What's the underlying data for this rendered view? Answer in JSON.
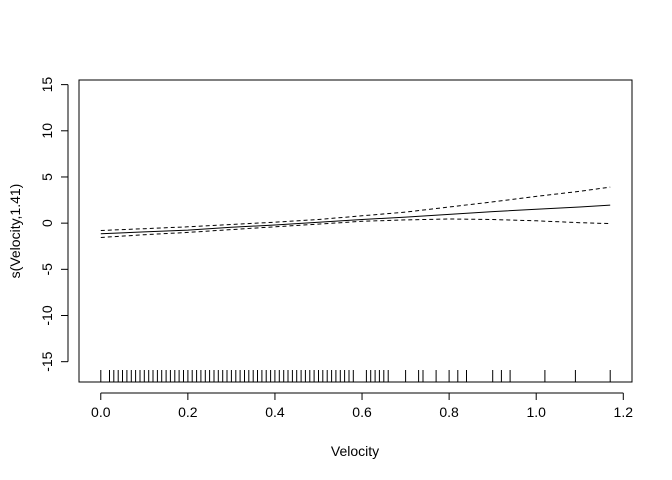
{
  "chart_data": {
    "type": "line",
    "title": "",
    "xlabel": "Velocity",
    "ylabel": "s(Velocity,1.41)",
    "xlim": [
      -0.05,
      1.22
    ],
    "ylim": [
      -17.2,
      15.5
    ],
    "x_ticks": [
      0.0,
      0.2,
      0.4,
      0.6,
      0.8,
      1.0,
      1.2
    ],
    "x_tick_labels": [
      "0.0",
      "0.2",
      "0.4",
      "0.6",
      "0.8",
      "1.0",
      "1.2"
    ],
    "y_ticks": [
      -15,
      -10,
      -5,
      0,
      5,
      10,
      15
    ],
    "y_tick_labels": [
      "-15",
      "-10",
      "-5",
      "0",
      "5",
      "10",
      "15"
    ],
    "grid": false,
    "legend": "none",
    "series": [
      {
        "role": "fit",
        "line_style": "solid",
        "x": [
          0.0,
          0.1,
          0.2,
          0.3,
          0.4,
          0.5,
          0.6,
          0.7,
          0.8,
          0.9,
          1.0,
          1.1,
          1.17
        ],
        "values": [
          -1.15,
          -0.95,
          -0.75,
          -0.45,
          -0.2,
          0.1,
          0.4,
          0.65,
          0.95,
          1.25,
          1.5,
          1.75,
          1.95
        ]
      },
      {
        "role": "upper",
        "line_style": "dashed",
        "x": [
          0.0,
          0.1,
          0.2,
          0.3,
          0.4,
          0.5,
          0.6,
          0.7,
          0.8,
          0.9,
          1.0,
          1.1,
          1.17
        ],
        "values": [
          -0.8,
          -0.6,
          -0.4,
          -0.15,
          0.1,
          0.4,
          0.8,
          1.2,
          1.75,
          2.3,
          2.9,
          3.45,
          3.9
        ]
      },
      {
        "role": "lower",
        "line_style": "dashed",
        "x": [
          0.0,
          0.1,
          0.2,
          0.3,
          0.4,
          0.5,
          0.6,
          0.7,
          0.8,
          0.9,
          1.0,
          1.1,
          1.17
        ],
        "values": [
          -1.55,
          -1.25,
          -1.0,
          -0.7,
          -0.4,
          -0.1,
          0.2,
          0.35,
          0.45,
          0.4,
          0.25,
          0.05,
          -0.05
        ]
      }
    ],
    "rug": [
      0.0,
      0.02,
      0.03,
      0.04,
      0.05,
      0.06,
      0.07,
      0.08,
      0.09,
      0.1,
      0.11,
      0.12,
      0.13,
      0.14,
      0.15,
      0.16,
      0.17,
      0.18,
      0.19,
      0.2,
      0.21,
      0.22,
      0.23,
      0.24,
      0.25,
      0.26,
      0.27,
      0.28,
      0.29,
      0.3,
      0.31,
      0.32,
      0.33,
      0.34,
      0.35,
      0.36,
      0.37,
      0.38,
      0.39,
      0.4,
      0.41,
      0.42,
      0.43,
      0.44,
      0.45,
      0.46,
      0.47,
      0.48,
      0.49,
      0.5,
      0.51,
      0.52,
      0.53,
      0.54,
      0.55,
      0.56,
      0.57,
      0.58,
      0.61,
      0.62,
      0.63,
      0.64,
      0.65,
      0.66,
      0.7,
      0.73,
      0.74,
      0.77,
      0.8,
      0.82,
      0.84,
      0.9,
      0.92,
      0.94,
      1.02,
      1.09,
      1.17
    ]
  }
}
